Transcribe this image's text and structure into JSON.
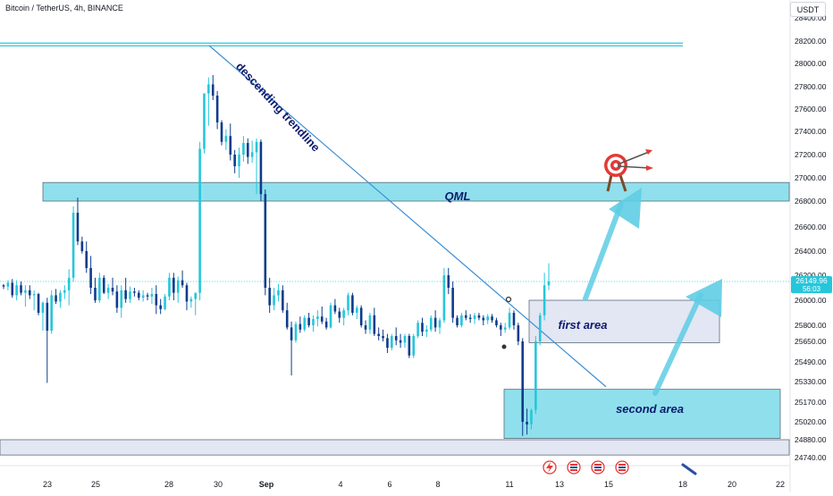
{
  "header": {
    "symbol": "Bitcoin / TetherUS, 4h, BINANCE",
    "currency_button": "USDT"
  },
  "price_label": {
    "price": "26149.96",
    "countdown": "56:03"
  },
  "annotations": {
    "trendline": "descending trendline",
    "qml": "QML",
    "first_area": "first area",
    "second_area": "second area"
  },
  "colors": {
    "up": "#26c6da",
    "down": "#0d3b8c",
    "zone": "#8fe0ec",
    "zone_border": "#5a6b7a",
    "area_fill": "#e3e6f3",
    "trendline": "#3a8fd6",
    "price_label_bg": "#26c6da",
    "arrow": "#5fcde4",
    "target": "#e53935"
  },
  "icons": [
    "target-icon",
    "flash-icon",
    "flag-icon"
  ],
  "chart_data": {
    "type": "candlestick",
    "y_tick_labels": [
      "28400.00",
      "28200.00",
      "28000.00",
      "27800.00",
      "27600.00",
      "27400.00",
      "27200.00",
      "27000.00",
      "26800.00",
      "26600.00",
      "26400.00",
      "26200.00",
      "26000.00",
      "25800.00",
      "25650.00",
      "25490.00",
      "25330.00",
      "25170.00",
      "25020.00",
      "24880.00",
      "24740.00"
    ],
    "x_tick_labels": [
      "23",
      "25",
      "28",
      "30",
      "Sep",
      "4",
      "6",
      "8",
      "11",
      "13",
      "15",
      "18",
      "20",
      "22"
    ],
    "ylim": [
      24700,
      28450
    ],
    "zones": [
      {
        "name": "QML",
        "low": 26800,
        "high": 26960
      },
      {
        "name": "first area",
        "low": 25640,
        "high": 26000
      },
      {
        "name": "second area",
        "low": 24890,
        "high": 25270
      },
      {
        "name": "",
        "low": 24760,
        "high": 24880
      }
    ],
    "resistance_level": 28170,
    "trendline": {
      "from": [
        "30",
        28160
      ],
      "to": [
        "13",
        25290
      ]
    },
    "current_price": 26149.96,
    "candles": [
      [
        26120,
        26130,
        26090,
        26110
      ],
      [
        26110,
        26160,
        26080,
        26140
      ],
      [
        26140,
        26170,
        26020,
        26040
      ],
      [
        26040,
        26160,
        26000,
        26120
      ],
      [
        26120,
        26150,
        26040,
        26060
      ],
      [
        26060,
        26120,
        25950,
        26080
      ],
      [
        26080,
        26120,
        26010,
        26040
      ],
      [
        26040,
        26080,
        25920,
        26050
      ],
      [
        26050,
        26060,
        25880,
        25900
      ],
      [
        25900,
        25990,
        25750,
        25980
      ],
      [
        25980,
        26020,
        25320,
        25750
      ],
      [
        25750,
        26080,
        25720,
        26040
      ],
      [
        26040,
        26090,
        25970,
        25990
      ],
      [
        25990,
        26080,
        25940,
        26060
      ],
      [
        26060,
        26120,
        26010,
        26080
      ],
      [
        26080,
        26250,
        25960,
        26180
      ],
      [
        26180,
        26760,
        26150,
        26710
      ],
      [
        26710,
        26830,
        26450,
        26480
      ],
      [
        26480,
        26520,
        26380,
        26400
      ],
      [
        26400,
        26480,
        26220,
        26260
      ],
      [
        26260,
        26360,
        26050,
        26100
      ],
      [
        26100,
        26180,
        25980,
        26000
      ],
      [
        26000,
        26220,
        25980,
        26180
      ],
      [
        26180,
        26200,
        26050,
        26060
      ],
      [
        26060,
        26130,
        26010,
        26100
      ],
      [
        26100,
        26180,
        26040,
        26070
      ],
      [
        26070,
        26120,
        25900,
        25940
      ],
      [
        25940,
        26120,
        25860,
        26080
      ],
      [
        26080,
        26180,
        25980,
        26010
      ],
      [
        26010,
        26110,
        25980,
        26070
      ],
      [
        26070,
        26100,
        26030,
        26060
      ],
      [
        26060,
        26080,
        26000,
        26020
      ],
      [
        26020,
        26080,
        25990,
        26040
      ],
      [
        26040,
        26060,
        26000,
        26030
      ],
      [
        26030,
        26100,
        25970,
        26050
      ],
      [
        26050,
        26120,
        25890,
        25960
      ],
      [
        25960,
        26010,
        25890,
        25930
      ],
      [
        25930,
        26050,
        25920,
        26030
      ],
      [
        26030,
        26220,
        26000,
        26180
      ],
      [
        26180,
        26220,
        26000,
        26060
      ],
      [
        26060,
        26190,
        25980,
        26160
      ],
      [
        26160,
        26240,
        26100,
        26120
      ],
      [
        26120,
        26140,
        25920,
        25990
      ],
      [
        25990,
        26030,
        25940,
        26010
      ],
      [
        26010,
        26060,
        25880,
        26060
      ],
      [
        26060,
        27310,
        26000,
        27250
      ],
      [
        27250,
        27740,
        27210,
        27740
      ],
      [
        27740,
        27880,
        27450,
        27820
      ],
      [
        27820,
        27900,
        27680,
        27720
      ],
      [
        27720,
        27760,
        27420,
        27480
      ],
      [
        27480,
        27500,
        27280,
        27310
      ],
      [
        27310,
        27420,
        27240,
        27360
      ],
      [
        27360,
        27470,
        27150,
        27200
      ],
      [
        27200,
        27240,
        27040,
        27100
      ],
      [
        27100,
        27260,
        27000,
        27200
      ],
      [
        27200,
        27360,
        27140,
        27300
      ],
      [
        27300,
        27340,
        27120,
        27180
      ],
      [
        27180,
        27320,
        27130,
        27220
      ],
      [
        27220,
        27340,
        26860,
        27310
      ],
      [
        27310,
        27330,
        26800,
        26860
      ],
      [
        26860,
        26900,
        26040,
        26100
      ],
      [
        26100,
        26180,
        25900,
        25960
      ],
      [
        25960,
        26100,
        25920,
        26040
      ],
      [
        26040,
        26130,
        25990,
        26080
      ],
      [
        26080,
        26120,
        25900,
        25920
      ],
      [
        25920,
        25980,
        25760,
        25780
      ],
      [
        25780,
        25830,
        25380,
        25660
      ],
      [
        25660,
        25830,
        25640,
        25810
      ],
      [
        25810,
        25870,
        25730,
        25760
      ],
      [
        25760,
        25880,
        25740,
        25860
      ],
      [
        25860,
        25900,
        25780,
        25800
      ],
      [
        25800,
        25880,
        25740,
        25850
      ],
      [
        25850,
        25920,
        25790,
        25870
      ],
      [
        25870,
        25950,
        25810,
        25830
      ],
      [
        25830,
        25860,
        25760,
        25780
      ],
      [
        25780,
        25980,
        25770,
        25960
      ],
      [
        25960,
        26010,
        25890,
        25910
      ],
      [
        25910,
        25940,
        25820,
        25860
      ],
      [
        25860,
        25940,
        25800,
        25920
      ],
      [
        25920,
        26060,
        25880,
        26040
      ],
      [
        26040,
        26060,
        25880,
        25900
      ],
      [
        25900,
        25960,
        25850,
        25940
      ],
      [
        25940,
        25960,
        25780,
        25800
      ],
      [
        25800,
        25840,
        25720,
        25760
      ],
      [
        25760,
        25900,
        25720,
        25880
      ],
      [
        25880,
        25940,
        25700,
        25720
      ],
      [
        25720,
        25780,
        25660,
        25700
      ],
      [
        25700,
        25760,
        25650,
        25680
      ],
      [
        25680,
        25720,
        25560,
        25600
      ],
      [
        25600,
        25720,
        25580,
        25700
      ],
      [
        25700,
        25780,
        25620,
        25660
      ],
      [
        25660,
        25720,
        25600,
        25640
      ],
      [
        25640,
        25720,
        25600,
        25700
      ],
      [
        25700,
        25720,
        25520,
        25540
      ],
      [
        25540,
        25720,
        25520,
        25700
      ],
      [
        25700,
        25840,
        25680,
        25820
      ],
      [
        25820,
        25860,
        25700,
        25740
      ],
      [
        25740,
        25800,
        25690,
        25760
      ],
      [
        25760,
        25880,
        25740,
        25860
      ],
      [
        25860,
        25920,
        25740,
        25780
      ],
      [
        25780,
        25860,
        25720,
        25840
      ],
      [
        25840,
        26260,
        25820,
        26200
      ],
      [
        26200,
        26260,
        26050,
        26100
      ],
      [
        26100,
        26150,
        25820,
        25860
      ],
      [
        25860,
        25880,
        25780,
        25800
      ],
      [
        25800,
        25900,
        25780,
        25880
      ],
      [
        25880,
        25920,
        25840,
        25860
      ],
      [
        25860,
        25890,
        25820,
        25850
      ],
      [
        25850,
        25900,
        25810,
        25880
      ],
      [
        25880,
        25900,
        25840,
        25860
      ],
      [
        25860,
        25880,
        25800,
        25840
      ],
      [
        25840,
        25890,
        25810,
        25870
      ],
      [
        25870,
        25890,
        25820,
        25840
      ],
      [
        25840,
        25860,
        25780,
        25800
      ],
      [
        25800,
        25820,
        25700,
        25760
      ],
      [
        25760,
        25820,
        25730,
        25780
      ],
      [
        25780,
        25940,
        25760,
        25900
      ],
      [
        25900,
        25920,
        25760,
        25800
      ],
      [
        25800,
        25820,
        25620,
        25650
      ],
      [
        25650,
        25680,
        24910,
        25020
      ],
      [
        25020,
        25120,
        24920,
        25000
      ],
      [
        25000,
        25120,
        24960,
        25110
      ],
      [
        25110,
        25700,
        25080,
        25650
      ],
      [
        25650,
        25900,
        25620,
        25880
      ],
      [
        25880,
        26220,
        25840,
        26120
      ],
      [
        26120,
        26300,
        26080,
        26149.96
      ]
    ]
  }
}
